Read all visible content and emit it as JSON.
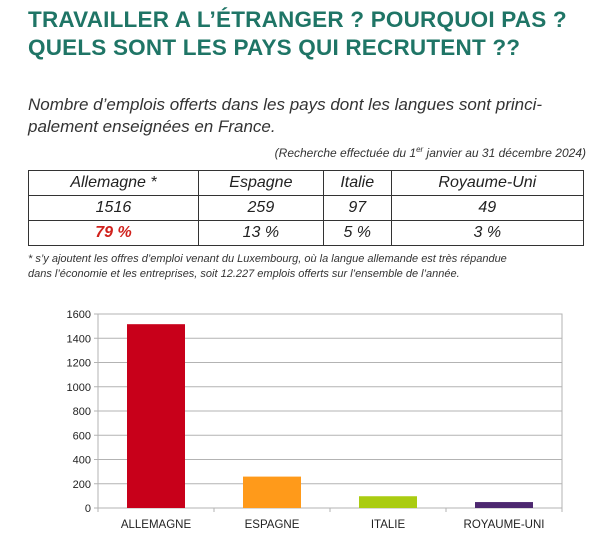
{
  "title_line1": "TRAVAILLER A L’ÉTRANGER ? POURQUOI PAS ?",
  "title_line2": "QUELS SONT LES PAYS QUI RECRUTENT ??",
  "subtitle_line1": "Nombre d’emplois offerts dans les pays dont les langues sont princi-",
  "subtitle_line2": "palement enseignées en France.",
  "search_note_pre": "(Recherche effectuée du 1",
  "search_note_sup": "er",
  "search_note_post": " janvier au 31 décembre 2024)",
  "table": {
    "headers": [
      "Allemagne *",
      "Espagne",
      "Italie",
      "Royaume-Uni"
    ],
    "counts": [
      "1516",
      "259",
      "97",
      "49"
    ],
    "percents": [
      "79 %",
      "13 %",
      "5 %",
      "3 %"
    ]
  },
  "footnote_line1": "* s’y ajoutent les offres d’emploi venant du Luxembourg, où la langue allemande est très répandue",
  "footnote_line2": "dans l’économie et les entreprises, soit 12.227 emplois offerts sur l’ensemble de l’année.",
  "colors": {
    "title": "#1f7566",
    "highlight": "#d0211c",
    "bars": [
      "#c8001a",
      "#ff9a1a",
      "#aacc11",
      "#4d2870"
    ]
  },
  "chart_data": {
    "type": "bar",
    "categories": [
      "ALLEMAGNE",
      "ESPAGNE",
      "ITALIE",
      "ROYAUME-UNI"
    ],
    "values": [
      1516,
      259,
      97,
      49
    ],
    "yticks": [
      "0",
      "200",
      "400",
      "600",
      "800",
      "1000",
      "1200",
      "1400",
      "1600"
    ],
    "ylim": [
      0,
      1600
    ],
    "grid": true,
    "legend": "none",
    "title": "",
    "xlabel": "",
    "ylabel": ""
  }
}
